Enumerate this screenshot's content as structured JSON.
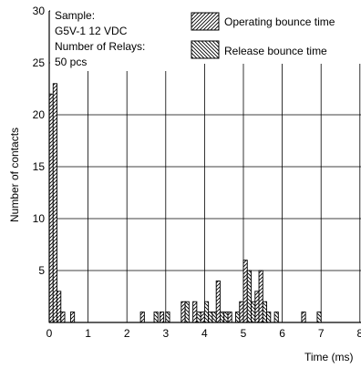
{
  "chart_data": {
    "type": "bar",
    "xlabel": "Time (ms)",
    "ylabel": "Number of contacts",
    "xlim": [
      0,
      8
    ],
    "ylim": [
      0,
      30
    ],
    "x_ticks": [
      "0",
      "1",
      "2",
      "3",
      "4",
      "5",
      "6",
      "7",
      "8"
    ],
    "y_ticks": [
      "5",
      "10",
      "15",
      "20",
      "25",
      "30"
    ],
    "bin_width": 0.1,
    "grid": true,
    "info_box": [
      "Sample:",
      "G5V-1 12 VDC",
      "Number of Relays:",
      "50 pcs"
    ],
    "legend_position": "top-right",
    "series": [
      {
        "name": "Operating bounce time",
        "hatch": "forward",
        "bins": [
          {
            "x": 0.05,
            "y": 22
          },
          {
            "x": 0.15,
            "y": 23
          },
          {
            "x": 0.25,
            "y": 3
          },
          {
            "x": 0.35,
            "y": 1
          },
          {
            "x": 0.6,
            "y": 1
          },
          {
            "x": 2.4,
            "y": 1
          },
          {
            "x": 2.9,
            "y": 1
          },
          {
            "x": 3.45,
            "y": 2
          },
          {
            "x": 3.75,
            "y": 2
          },
          {
            "x": 3.95,
            "y": 1
          },
          {
            "x": 4.35,
            "y": 4
          },
          {
            "x": 4.65,
            "y": 1
          },
          {
            "x": 4.95,
            "y": 2
          },
          {
            "x": 5.05,
            "y": 6
          },
          {
            "x": 5.35,
            "y": 3
          },
          {
            "x": 5.45,
            "y": 5
          },
          {
            "x": 6.55,
            "y": 1
          }
        ]
      },
      {
        "name": "Release bounce time",
        "hatch": "back",
        "bins": [
          {
            "x": 2.75,
            "y": 1
          },
          {
            "x": 3.05,
            "y": 1
          },
          {
            "x": 3.55,
            "y": 2
          },
          {
            "x": 3.85,
            "y": 1
          },
          {
            "x": 4.05,
            "y": 2
          },
          {
            "x": 4.15,
            "y": 1
          },
          {
            "x": 4.25,
            "y": 1
          },
          {
            "x": 4.45,
            "y": 1
          },
          {
            "x": 4.55,
            "y": 1
          },
          {
            "x": 4.85,
            "y": 1
          },
          {
            "x": 5.15,
            "y": 5
          },
          {
            "x": 5.25,
            "y": 2
          },
          {
            "x": 5.55,
            "y": 2
          },
          {
            "x": 5.65,
            "y": 1
          },
          {
            "x": 5.85,
            "y": 1
          },
          {
            "x": 6.95,
            "y": 1
          }
        ]
      }
    ]
  },
  "colors": {
    "axis": "#000000",
    "grid": "#000000",
    "bar_fill": "#ffffff",
    "hatch": "#000000"
  }
}
